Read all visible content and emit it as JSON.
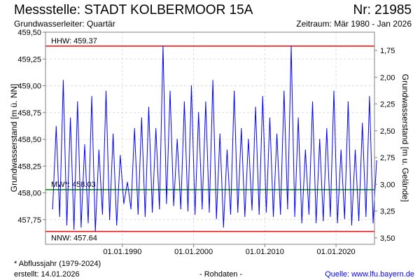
{
  "header": {
    "title": "Messstelle: STADT KOLBERMOOR 15A",
    "nr": "Nr: 21985",
    "aquifer": "Grundwasserleiter: Quartär",
    "period": "Zeitraum: Mär 1980 - Jan 2026"
  },
  "footer": {
    "note": "* Abflussjahr (1979-2024)",
    "created": "erstellt:  14.01.2026",
    "datatype": "- Rohdaten -",
    "source": "Quelle: www.lfu.bayern.de"
  },
  "chart_data": {
    "type": "line",
    "ylabel": "Grundwasserstand [m ü. NN]",
    "ylabel_right": "Grundwasserstand [m u. Gelände]",
    "ylim": [
      457.52,
      459.5
    ],
    "xlim": [
      1979.2,
      2025.4
    ],
    "ground_level": 461.08,
    "yticks": [
      "459,50",
      "459,25",
      "459,00",
      "458,75",
      "458,50",
      "458,25",
      "458,00",
      "457,75"
    ],
    "yticks_values": [
      459.5,
      459.25,
      459.0,
      458.75,
      458.5,
      458.25,
      458.0,
      457.75
    ],
    "yticks_right": [
      "1,75",
      "2,00",
      "2,25",
      "2,50",
      "2,75",
      "3,00",
      "3,25",
      "3,50"
    ],
    "yticks_right_values": [
      1.75,
      2.0,
      2.25,
      2.5,
      2.75,
      3.0,
      3.25,
      3.5
    ],
    "xticks": [
      "01.01.1990",
      "01.01.2000",
      "01.01.2010",
      "01.01.2020"
    ],
    "xticks_values": [
      1990,
      2000,
      2010,
      2020
    ],
    "reference_lines": [
      {
        "label": "HHW: 459.37",
        "value": 459.37,
        "color": "#ff0000"
      },
      {
        "label": "MW*: 458.03",
        "value": 458.03,
        "color": "#008000"
      },
      {
        "label": "NNW: 457.64",
        "value": 457.64,
        "color": "#ff0000"
      }
    ],
    "series": [
      {
        "name": "Grundwasserstand",
        "color": "#0000ff",
        "x_start": 1980.2,
        "x_step": 0.5,
        "values": [
          457.85,
          458.62,
          457.78,
          459.05,
          457.7,
          458.7,
          457.66,
          458.85,
          457.68,
          458.45,
          457.72,
          458.9,
          457.64,
          458.4,
          457.8,
          458.95,
          457.75,
          458.55,
          457.7,
          458.35,
          457.9,
          458.1,
          457.85,
          458.6,
          457.8,
          458.7,
          457.78,
          458.8,
          457.82,
          458.6,
          457.85,
          459.37,
          457.9,
          458.95,
          457.88,
          458.5,
          457.85,
          458.85,
          457.83,
          459.0,
          457.8,
          458.75,
          457.85,
          458.85,
          457.82,
          459.05,
          457.76,
          458.55,
          457.68,
          458.4,
          457.8,
          458.95,
          457.82,
          458.6,
          457.78,
          458.5,
          457.84,
          458.8,
          457.8,
          458.9,
          457.82,
          458.7,
          457.78,
          458.55,
          457.8,
          458.95,
          457.85,
          459.37,
          457.78,
          458.7,
          457.72,
          458.4,
          457.8,
          458.85,
          457.72,
          458.5,
          457.74,
          458.6,
          457.78,
          458.95,
          457.72,
          458.4,
          457.76,
          458.85,
          457.7,
          458.4,
          457.74,
          458.65,
          457.78,
          458.9,
          457.72,
          458.3
        ]
      }
    ]
  }
}
